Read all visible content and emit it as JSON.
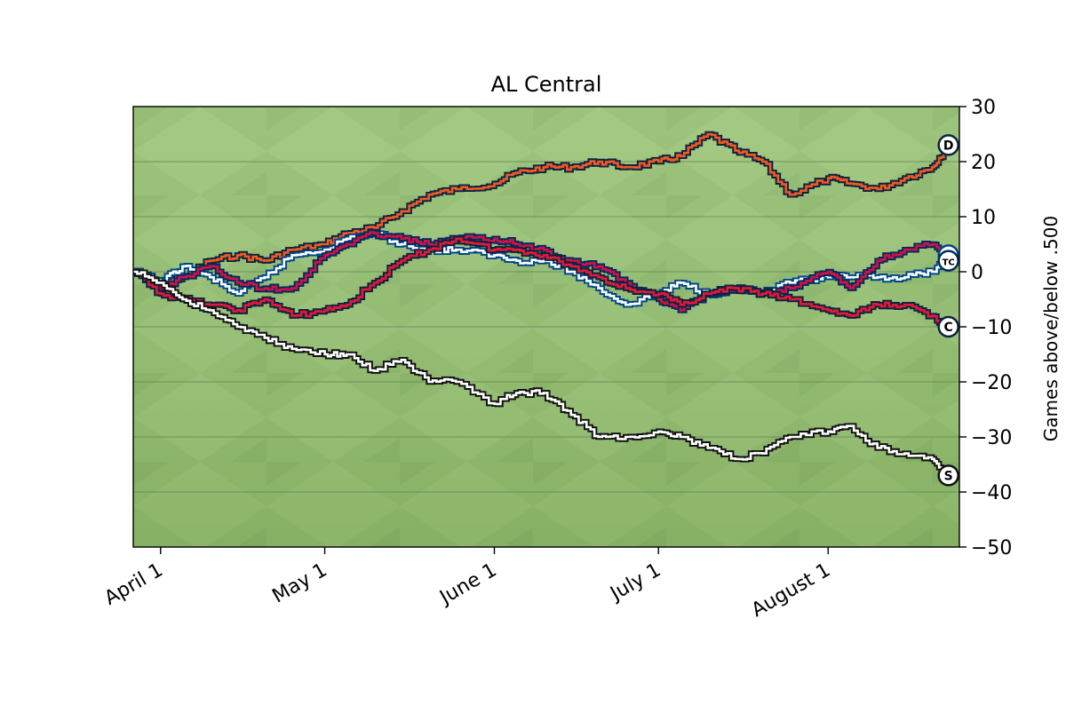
{
  "chart_data": {
    "type": "line",
    "title": "AL Central",
    "xlabel": "",
    "ylabel": "Games above/below .500",
    "xlim": [
      "2024-03-27",
      "2024-08-25"
    ],
    "ylim": [
      -50,
      30
    ],
    "y_ticks": [
      30,
      20,
      10,
      0,
      -10,
      -20,
      -30,
      -40,
      -50
    ],
    "y_tick_labels": [
      "30",
      "20",
      "10",
      "0",
      "−10",
      "−20",
      "−30",
      "−40",
      "−50"
    ],
    "x_ticks": [
      "2024-04-01",
      "2024-05-01",
      "2024-06-01",
      "2024-07-01",
      "2024-08-01"
    ],
    "x_tick_labels": [
      "April  1",
      "May  1",
      "June  1",
      "July  1",
      "August  1"
    ],
    "grid": "horizontal",
    "background": "baseball field grass",
    "y_axis_side": "right",
    "series": [
      {
        "name": "",
        "team_icon": "tigers-logo-icon",
        "color": "#f05a22",
        "outline": "#0c2340",
        "x": [
          "2024-03-27",
          "2024-04-01",
          "2024-04-05",
          "2024-04-10",
          "2024-04-15",
          "2024-04-20",
          "2024-04-25",
          "2024-05-01",
          "2024-05-05",
          "2024-05-10",
          "2024-05-15",
          "2024-05-20",
          "2024-05-25",
          "2024-06-01",
          "2024-06-05",
          "2024-06-10",
          "2024-06-15",
          "2024-06-20",
          "2024-06-25",
          "2024-07-01",
          "2024-07-05",
          "2024-07-10",
          "2024-07-15",
          "2024-07-20",
          "2024-07-25",
          "2024-08-01",
          "2024-08-05",
          "2024-08-10",
          "2024-08-15",
          "2024-08-20",
          "2024-08-23"
        ],
        "y": [
          0,
          -2,
          -1,
          2,
          3,
          2,
          4,
          5,
          7,
          8,
          11,
          14,
          15,
          16,
          18,
          19,
          19,
          20,
          19,
          20,
          21,
          25,
          22,
          20,
          14,
          17,
          16,
          15,
          17,
          19,
          23
        ]
      },
      {
        "name": "",
        "team_icon": "royals-logo-icon",
        "color": "#ffffff",
        "outline": "#004687",
        "x": [
          "2024-03-27",
          "2024-04-01",
          "2024-04-05",
          "2024-04-10",
          "2024-04-15",
          "2024-04-20",
          "2024-04-25",
          "2024-05-01",
          "2024-05-05",
          "2024-05-10",
          "2024-05-15",
          "2024-05-20",
          "2024-05-25",
          "2024-06-01",
          "2024-06-05",
          "2024-06-10",
          "2024-06-15",
          "2024-06-20",
          "2024-06-25",
          "2024-07-01",
          "2024-07-05",
          "2024-07-10",
          "2024-07-15",
          "2024-07-20",
          "2024-07-25",
          "2024-08-01",
          "2024-08-05",
          "2024-08-10",
          "2024-08-15",
          "2024-08-20",
          "2024-08-23"
        ],
        "y": [
          0,
          -2,
          1,
          -1,
          -4,
          -1,
          3,
          4,
          6,
          7,
          5,
          4,
          4,
          3,
          2,
          2,
          0,
          -3,
          -6,
          -4,
          -2,
          -4,
          -3,
          -4,
          -2,
          -1,
          -1,
          -1,
          -1,
          0,
          3
        ]
      },
      {
        "name": "",
        "team_icon": "twins-logo-icon",
        "color": "#d31145",
        "outline": "#002b5c",
        "x": [
          "2024-03-27",
          "2024-04-01",
          "2024-04-05",
          "2024-04-10",
          "2024-04-15",
          "2024-04-20",
          "2024-04-25",
          "2024-05-01",
          "2024-05-05",
          "2024-05-10",
          "2024-05-15",
          "2024-05-20",
          "2024-05-25",
          "2024-06-01",
          "2024-06-05",
          "2024-06-10",
          "2024-06-15",
          "2024-06-20",
          "2024-06-25",
          "2024-07-01",
          "2024-07-05",
          "2024-07-10",
          "2024-07-15",
          "2024-07-20",
          "2024-07-25",
          "2024-08-01",
          "2024-08-05",
          "2024-08-10",
          "2024-08-15",
          "2024-08-20",
          "2024-08-23"
        ],
        "y": [
          0,
          -3,
          -1,
          1,
          -2,
          -3,
          -3,
          3,
          5,
          7,
          6,
          5,
          6,
          6,
          5,
          4,
          2,
          1,
          -2,
          -5,
          -7,
          -4,
          -3,
          -4,
          -3,
          0,
          -3,
          2,
          4,
          5,
          2
        ]
      },
      {
        "name": "",
        "team_icon": "guardians-logo-icon",
        "color": "#e31937",
        "outline": "#0c2340",
        "x": [
          "2024-03-27",
          "2024-04-01",
          "2024-04-05",
          "2024-04-10",
          "2024-04-15",
          "2024-04-20",
          "2024-04-25",
          "2024-05-01",
          "2024-05-05",
          "2024-05-10",
          "2024-05-15",
          "2024-05-20",
          "2024-05-25",
          "2024-06-01",
          "2024-06-05",
          "2024-06-10",
          "2024-06-15",
          "2024-06-20",
          "2024-06-25",
          "2024-07-01",
          "2024-07-05",
          "2024-07-10",
          "2024-07-15",
          "2024-07-20",
          "2024-07-25",
          "2024-08-01",
          "2024-08-05",
          "2024-08-10",
          "2024-08-15",
          "2024-08-20",
          "2024-08-23"
        ],
        "y": [
          0,
          -4,
          -5,
          -6,
          -7,
          -5,
          -8,
          -7,
          -6,
          -2,
          2,
          4,
          6,
          4,
          4,
          3,
          1,
          -1,
          -3,
          -4,
          -6,
          -4,
          -3,
          -4,
          -5,
          -7,
          -8,
          -6,
          -6,
          -8,
          -10
        ]
      },
      {
        "name": "",
        "team_icon": "white-sox-logo-icon",
        "color": "#ffffff",
        "outline": "#111111",
        "x": [
          "2024-03-27",
          "2024-04-01",
          "2024-04-05",
          "2024-04-10",
          "2024-04-15",
          "2024-04-20",
          "2024-04-25",
          "2024-05-01",
          "2024-05-05",
          "2024-05-10",
          "2024-05-15",
          "2024-05-20",
          "2024-05-25",
          "2024-06-01",
          "2024-06-05",
          "2024-06-10",
          "2024-06-15",
          "2024-06-20",
          "2024-06-25",
          "2024-07-01",
          "2024-07-05",
          "2024-07-10",
          "2024-07-15",
          "2024-07-20",
          "2024-07-25",
          "2024-08-01",
          "2024-08-05",
          "2024-08-10",
          "2024-08-15",
          "2024-08-20",
          "2024-08-23"
        ],
        "y": [
          0,
          -2,
          -5,
          -7,
          -10,
          -12,
          -14,
          -15,
          -15,
          -18,
          -16,
          -20,
          -20,
          -24,
          -22,
          -22,
          -26,
          -30,
          -30,
          -29,
          -30,
          -32,
          -34,
          -33,
          -30,
          -29,
          -28,
          -32,
          -33,
          -34,
          -37
        ]
      }
    ]
  }
}
